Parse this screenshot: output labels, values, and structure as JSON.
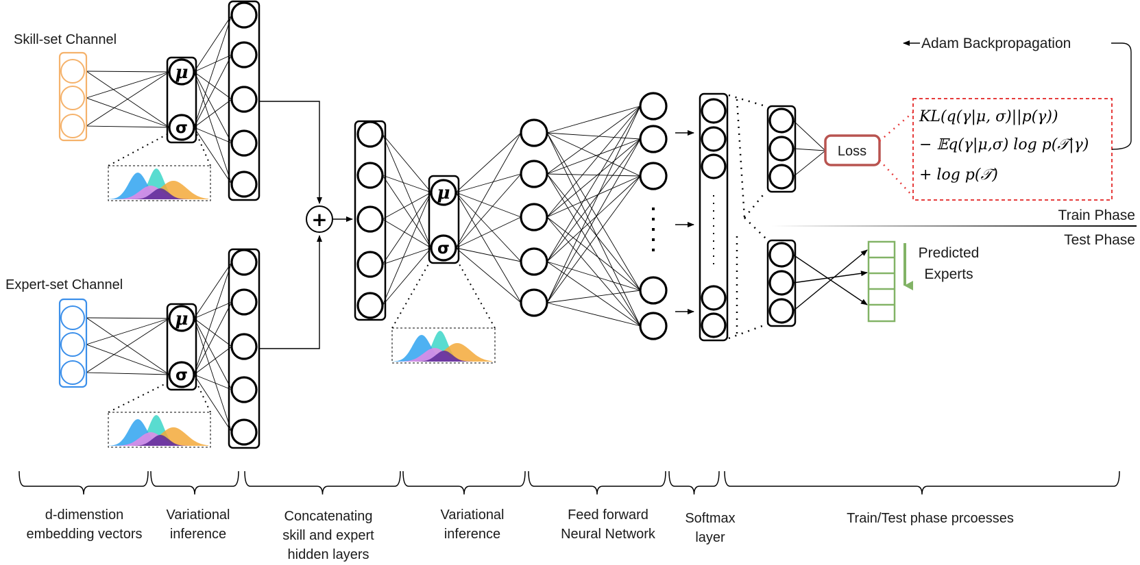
{
  "channels": {
    "skill": {
      "label": "Skill-set Channel",
      "color": "#f5b26b"
    },
    "expert": {
      "label": "Expert-set Channel",
      "color": "#3b8fea"
    }
  },
  "variational": {
    "mu": "μ",
    "sigma": "σ"
  },
  "merge_symbol": "+",
  "backprop_label": "Adam Backpropagation",
  "loss_label": "Loss",
  "loss_formula": {
    "line1": "KL(q(γ|μ, σ)||p(γ))",
    "line2": "− 𝔼q(γ|μ,σ) log p(𝒯|γ)",
    "line3": "+ log p(𝒯)"
  },
  "phases": {
    "train": "Train Phase",
    "test": "Test Phase"
  },
  "predicted": {
    "line1": "Predicted",
    "line2": "Experts"
  },
  "stages": [
    {
      "line1": "d-dimenstion",
      "line2": "embedding vectors",
      "line3": ""
    },
    {
      "line1": "Variational",
      "line2": "inference",
      "line3": ""
    },
    {
      "line1": "Concatenating",
      "line2": "skill and expert",
      "line3": "hidden layers"
    },
    {
      "line1": "Variational",
      "line2": "inference",
      "line3": ""
    },
    {
      "line1": "Feed forward",
      "line2": "Neural Network",
      "line3": ""
    },
    {
      "line1": "Softmax",
      "line2": "layer",
      "line3": ""
    },
    {
      "line1": "Train/Test phase prcoesses",
      "line2": "",
      "line3": ""
    }
  ],
  "colors": {
    "loss_border": "#b85450",
    "loss_dashed_box": "#e63b3b",
    "predicted_green": "#82b366",
    "dist_cyan": "#3cd6c8",
    "dist_blue": "#2fa3f0",
    "dist_orange": "#f3a93a",
    "dist_pink": "#e58ae6",
    "dist_purple": "#5b2a9a"
  }
}
